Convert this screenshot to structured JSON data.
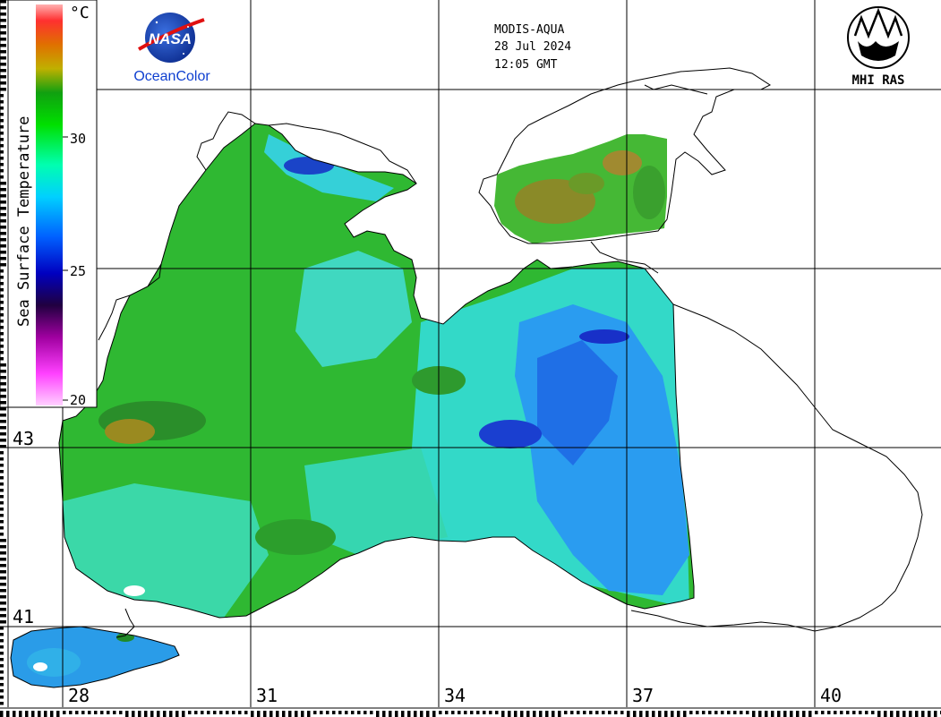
{
  "header": {
    "sensor": "MODIS-AQUA",
    "date": "28 Jul 2024",
    "time": "12:05 GMT"
  },
  "logos": {
    "nasa_text": "NASA",
    "oceancolor_text": "OceanColor",
    "mhi_text": "MHI RAS"
  },
  "legend": {
    "title": "Sea Surface Temperature",
    "unit": "°C",
    "ticks": [
      "30",
      "25",
      "20"
    ],
    "colors": [
      "#ffd0ff",
      "#ff40ff",
      "#a000a0",
      "#200040",
      "#0000c0",
      "#0060ff",
      "#00d0ff",
      "#00ffb0",
      "#00e000",
      "#10a010",
      "#c0b000",
      "#e07000",
      "#ff3030",
      "#ffb0b0"
    ]
  },
  "axes": {
    "lat_labels": [
      "43",
      "41"
    ],
    "lon_labels": [
      "28",
      "31",
      "34",
      "37",
      "40"
    ]
  },
  "colors": {
    "sea_green": "#2fb832",
    "sea_cyan": "#33d9c8",
    "sea_blue": "#2a8cf0",
    "deep_blue": "#1830c8",
    "warm_olive": "#9a8a20"
  }
}
